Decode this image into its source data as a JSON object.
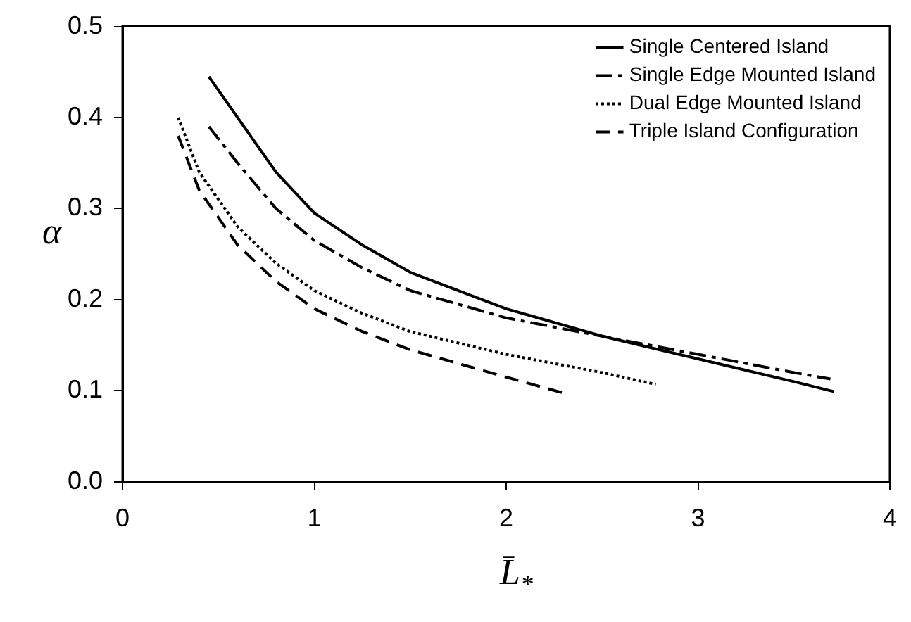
{
  "chart_data": {
    "type": "line",
    "xlabel": "L̄$_{*}$",
    "ylabel": "α",
    "xlim": [
      0,
      4
    ],
    "xticks": [
      0,
      1,
      2,
      3,
      4
    ],
    "ylim": [
      0,
      0.5
    ],
    "yticks": [
      {
        "value": 0,
        "label": "0.0"
      },
      0.1,
      0.2,
      0.3,
      0.4,
      0.5
    ],
    "grid": false,
    "legend": "top right",
    "marker": "none",
    "series": [
      {
        "name": "Single Centered Island",
        "color": "#000000",
        "line_style": "solid",
        "x": [
          0.45,
          0.6,
          0.8,
          1.0,
          1.25,
          1.5,
          2.0,
          2.5,
          3.0,
          3.5,
          3.71
        ],
        "values": [
          0.445,
          0.4,
          0.34,
          0.295,
          0.26,
          0.23,
          0.19,
          0.16,
          0.135,
          0.11,
          0.099
        ]
      },
      {
        "name": "Single Edge Mounted Island",
        "color": "#000000",
        "line_style": "dashdot",
        "x": [
          0.45,
          0.6,
          0.8,
          1.0,
          1.25,
          1.5,
          2.0,
          2.5,
          3.0,
          3.5,
          3.69
        ],
        "values": [
          0.39,
          0.35,
          0.3,
          0.265,
          0.235,
          0.21,
          0.18,
          0.16,
          0.14,
          0.12,
          0.113
        ]
      },
      {
        "name": "Dual Edge Mounted Island",
        "color": "#000000",
        "line_style": "dotted",
        "x": [
          0.29,
          0.4,
          0.6,
          0.8,
          1.0,
          1.25,
          1.5,
          2.0,
          2.5,
          2.78
        ],
        "values": [
          0.4,
          0.34,
          0.28,
          0.24,
          0.21,
          0.185,
          0.165,
          0.14,
          0.12,
          0.107
        ]
      },
      {
        "name": "Triple Island Configuration",
        "color": "#000000",
        "line_style": "dashed",
        "x": [
          0.29,
          0.4,
          0.6,
          0.8,
          1.0,
          1.25,
          1.5,
          2.0,
          2.29
        ],
        "values": [
          0.38,
          0.32,
          0.26,
          0.22,
          0.19,
          0.165,
          0.145,
          0.115,
          0.098
        ]
      }
    ]
  }
}
